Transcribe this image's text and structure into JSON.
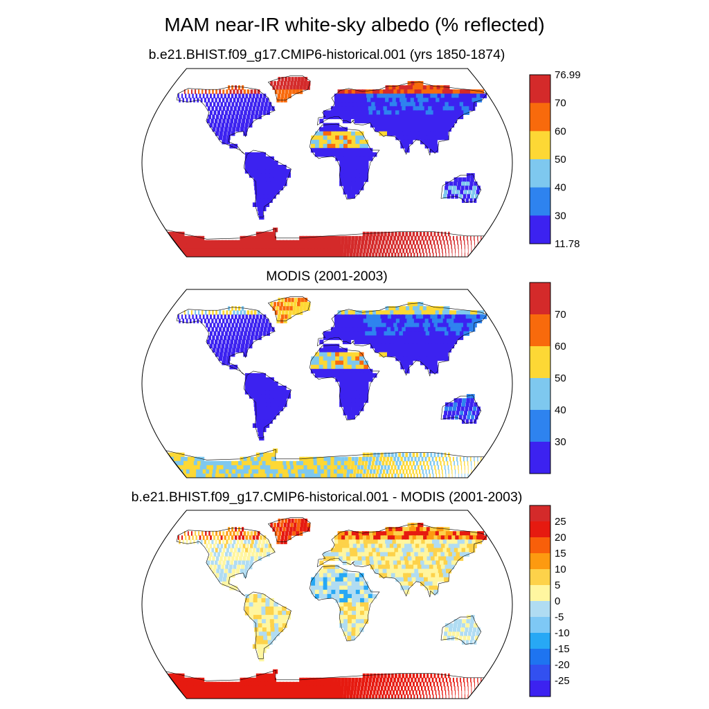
{
  "title": "MAM near-IR white-sky albedo (% reflected)",
  "panels": [
    {
      "title": "b.e21.BHIST.f09_g17.CMIP6-historical.001 (yrs 1850-1874)",
      "colorbar": {
        "labels": [
          "76.99",
          "70",
          "60",
          "50",
          "40",
          "30",
          "11.78"
        ],
        "colors": [
          "#d42a2a",
          "#f86a0c",
          "#fdd835",
          "#7ec8ef",
          "#2e83ef",
          "#3c22f0"
        ],
        "min": "11.78",
        "max": "76.99"
      }
    },
    {
      "title": "MODIS (2001-2003)",
      "colorbar": {
        "labels": [
          "70",
          "60",
          "50",
          "40",
          "30"
        ],
        "colors": [
          "#d42a2a",
          "#f86a0c",
          "#fdd835",
          "#7ec8ef",
          "#2e83ef",
          "#3c22f0"
        ]
      }
    },
    {
      "title": "b.e21.BHIST.f09_g17.CMIP6-historical.001 - MODIS (2001-2003)",
      "colorbar": {
        "labels": [
          "25",
          "20",
          "15",
          "10",
          "5",
          "0",
          "-5",
          "-10",
          "-15",
          "-20",
          "-25"
        ],
        "colors": [
          "#d42a2a",
          "#e61a10",
          "#f85f0a",
          "#fd9a10",
          "#fdd24a",
          "#fff6a0",
          "#b0dcf2",
          "#7ec8f5",
          "#27a8f5",
          "#1e74f0",
          "#3250f0",
          "#3c22f0"
        ]
      }
    }
  ]
}
